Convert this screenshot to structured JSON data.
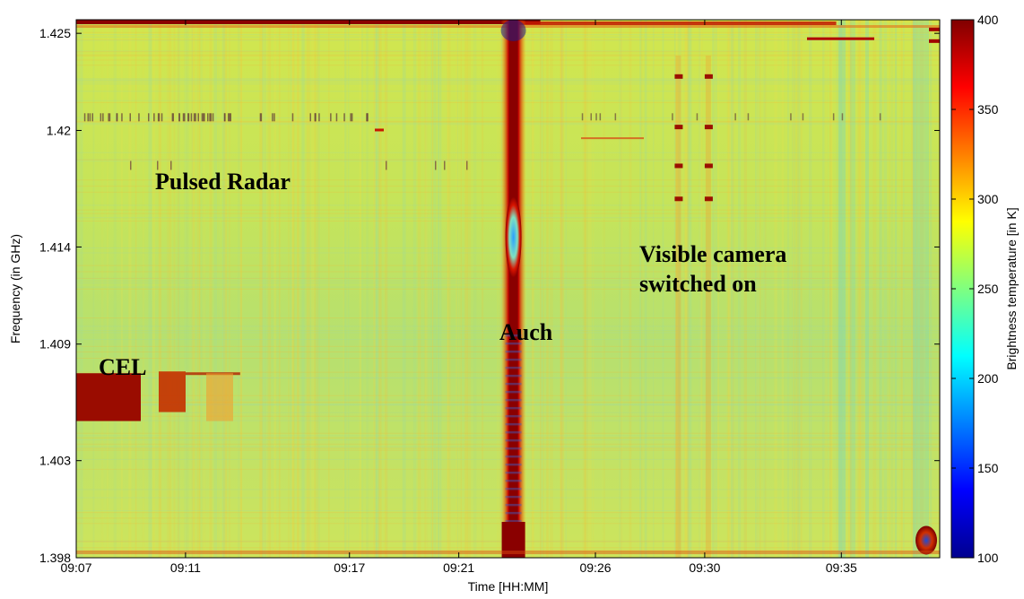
{
  "chart_data": {
    "type": "heatmap",
    "title": "",
    "xlabel": "Time [HH:MM]",
    "ylabel": "Frequency (in GHz)",
    "x_ticks": [
      "09:07",
      "09:11",
      "09:17",
      "09:21",
      "09:26",
      "09:30",
      "09:35"
    ],
    "y_ticks": [
      "1.398",
      "1.403",
      "1.409",
      "1.414",
      "1.42",
      "1.425"
    ],
    "colorbar": {
      "label": "Brightness temperature [in K]",
      "range": [
        100,
        400
      ],
      "ticks": [
        "100",
        "150",
        "200",
        "250",
        "300",
        "350",
        "400"
      ],
      "colormap": "jet"
    },
    "background_level_K": 270,
    "features": [
      {
        "name": "Auch",
        "type": "vertical-band",
        "time": "09:23",
        "level_K": 400
      },
      {
        "name": "Pulsed Radar",
        "type": "intermittent-pulses",
        "frequency_GHz": 1.4207
      },
      {
        "name": "CEL",
        "type": "band",
        "time_range": [
          "09:07",
          "09:13"
        ],
        "frequency_range_GHz": [
          1.4055,
          1.4075
        ],
        "level_K": 380
      },
      {
        "name": "Visible camera switched on",
        "type": "vertical-lines",
        "times": [
          "09:29",
          "09:30"
        ]
      }
    ],
    "annotations": [
      "Pulsed Radar",
      "Visible camera switched on",
      "Auch",
      "CEL"
    ],
    "annotation_lines": {
      "pulsed_radar": "Pulsed Radar",
      "camera_line1": "Visible camera",
      "camera_line2": "switched on",
      "auch": "Auch",
      "cel": "CEL"
    },
    "colors": {
      "background": "#c8e85a",
      "hot": "#800000",
      "cold": "#00008f"
    }
  }
}
